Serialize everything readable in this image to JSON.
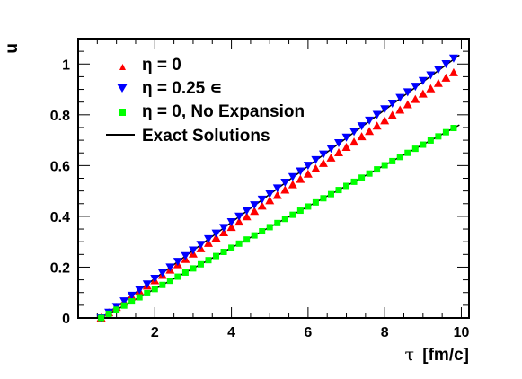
{
  "chart_data": {
    "type": "scatter",
    "xlabel_symbol": "τ",
    "xlabel_unit": "[fm/c]",
    "ylabel": "u",
    "xlim": [
      0,
      10.2
    ],
    "ylim": [
      0,
      1.1
    ],
    "xticks": [
      2,
      4,
      6,
      8,
      10
    ],
    "yticks": [
      0,
      0.2,
      0.4,
      0.6,
      0.8,
      1
    ],
    "ytick_labels": [
      "0",
      "0.2",
      "0.4",
      "0.6",
      "0.8",
      "1"
    ],
    "legend_position": "top-left",
    "series": [
      {
        "name": "η = 0",
        "marker": "triangle-up",
        "color": "#ff0000",
        "x": [
          0.6,
          1.4,
          2.2,
          3.0,
          3.8,
          4.6,
          5.4,
          6.2,
          7.0,
          7.8,
          8.6,
          9.4,
          9.8
        ],
        "y": [
          0.0,
          0.084,
          0.168,
          0.252,
          0.336,
          0.42,
          0.504,
          0.588,
          0.672,
          0.756,
          0.84,
          0.924,
          0.966
        ],
        "step": 0.2
      },
      {
        "name": "η = 0.25 ∊",
        "marker": "triangle-down",
        "color": "#0000ff",
        "x": [
          0.6,
          1.4,
          2.2,
          3.0,
          3.8,
          4.6,
          5.4,
          6.2,
          7.0,
          7.8,
          8.6,
          9.4,
          9.8
        ],
        "y": [
          0.0,
          0.089,
          0.178,
          0.267,
          0.356,
          0.445,
          0.534,
          0.623,
          0.712,
          0.801,
          0.89,
          0.979,
          1.023
        ],
        "step": 0.2
      },
      {
        "name": "η = 0, No Expansion",
        "marker": "square",
        "color": "#00ff00",
        "x": [
          0.6,
          1.4,
          2.2,
          3.0,
          3.8,
          4.6,
          5.4,
          6.2,
          7.0,
          7.8,
          8.6,
          9.4,
          9.8
        ],
        "y": [
          0.0,
          0.065,
          0.13,
          0.195,
          0.26,
          0.325,
          0.39,
          0.455,
          0.52,
          0.585,
          0.65,
          0.715,
          0.748
        ],
        "step": 0.2
      }
    ],
    "exact_solutions": {
      "name": "Exact Solutions",
      "color": "#000000",
      "lines": [
        {
          "x": [
            0.6,
            9.95
          ],
          "y": [
            0.0,
            1.035
          ]
        },
        {
          "x": [
            0.6,
            9.95
          ],
          "y": [
            0.0,
            0.76
          ]
        }
      ]
    }
  }
}
